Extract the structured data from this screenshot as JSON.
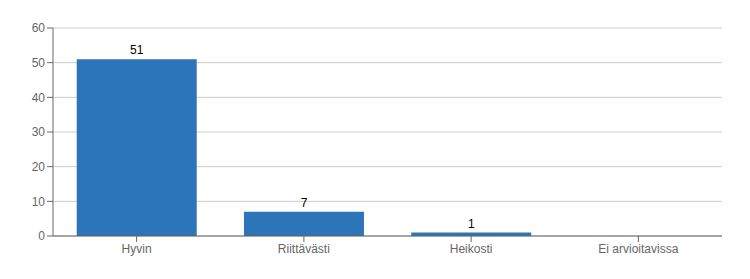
{
  "chart_data": {
    "type": "bar",
    "categories": [
      "Hyvin",
      "Riittävästi",
      "Heikosti",
      "Ei arvioitavissa"
    ],
    "values": [
      51,
      7,
      1,
      0
    ],
    "color": "#2b75b8",
    "ylim": [
      0,
      60
    ],
    "yticks": [
      0,
      10,
      20,
      30,
      40,
      50,
      60
    ],
    "grid": true,
    "data_labels": true
  }
}
